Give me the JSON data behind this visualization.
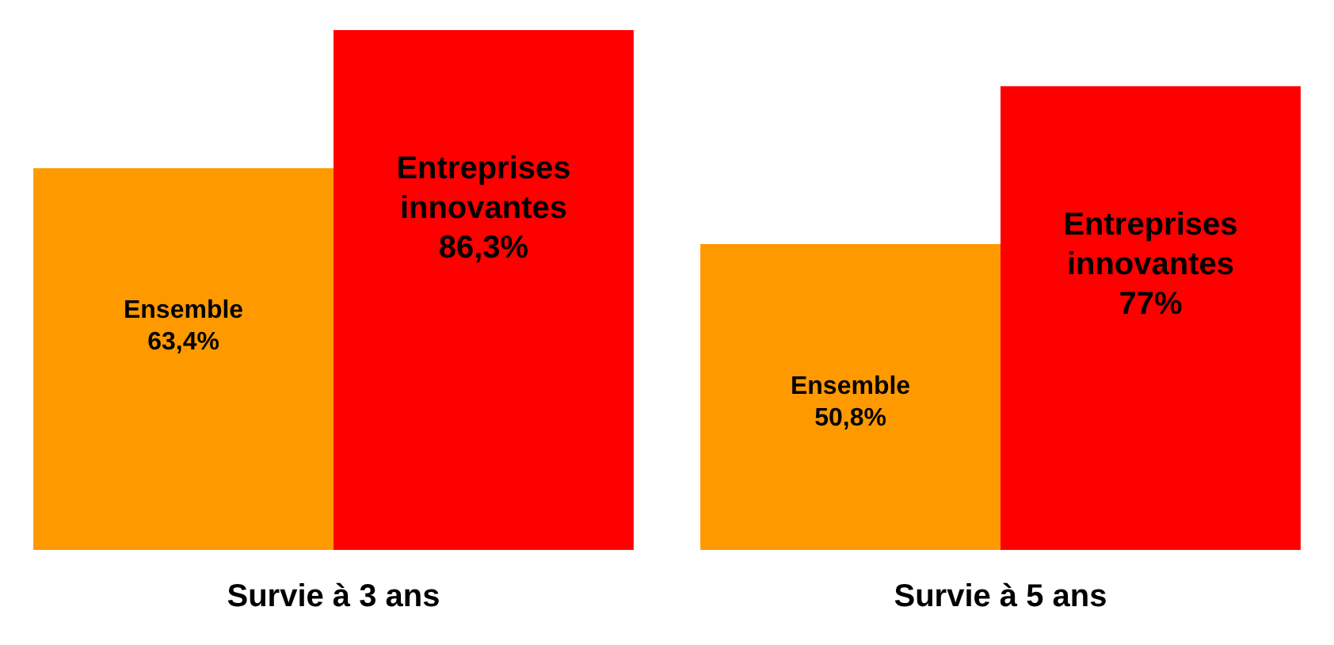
{
  "chart_data": {
    "type": "bar",
    "categories": [
      "Survie à 3 ans",
      "Survie à 5 ans"
    ],
    "series": [
      {
        "name": "Ensemble",
        "color": "#ff9900",
        "values": [
          63.4,
          50.8
        ],
        "value_labels": [
          "63,4%",
          "50,8%"
        ]
      },
      {
        "name": "Entreprises innovantes",
        "color": "#ff0000",
        "values": [
          86.3,
          77
        ],
        "value_labels": [
          "86,3%",
          "77%"
        ]
      }
    ],
    "legend": false,
    "grid": false,
    "tick_labels": "x"
  }
}
